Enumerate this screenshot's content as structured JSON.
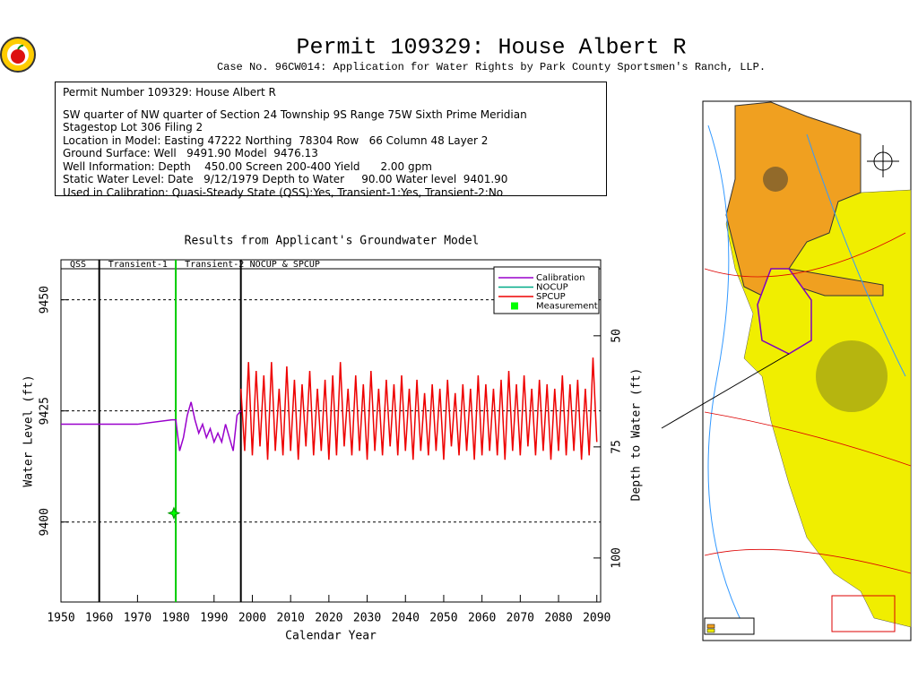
{
  "header": {
    "title": "Permit 109329:  House Albert R",
    "subtitle": "Case No. 96CW014: Application for Water Rights by Park County Sportsmen's Ranch, LLP."
  },
  "info": {
    "lines": [
      "Permit Number 109329: House Albert R",
      "SW quarter of NW quarter of Section 24 Township 9S Range 75W Sixth Prime Meridian",
      "Stagestop Lot 306 Filing 2",
      "Location in Model: Easting 47222 Northing  78304 Row   66 Column 48 Layer 2",
      "Ground Surface: Well   9491.90 Model  9476.13",
      "Well Information: Depth    450.00 Screen 200-400 Yield      2.00 gpm",
      "Static Water Level: Date   9/12/1979 Depth to Water     90.00 Water level  9401.90",
      "Used in Calibration: Quasi-Steady State (QSS):Yes, Transient-1:Yes, Transient-2:No"
    ]
  },
  "chart_data": {
    "type": "line",
    "title": "Results from Applicant's Groundwater Model",
    "xlabel": "Calendar Year",
    "ylabel": "Water Level (ft)",
    "y2label": "Depth to Water (ft)",
    "xlim": [
      1950,
      2091
    ],
    "xticks": [
      1950,
      1960,
      1970,
      1980,
      1990,
      2000,
      2010,
      2020,
      2030,
      2040,
      2050,
      2060,
      2070,
      2080,
      2090
    ],
    "ylim": [
      9382,
      9459
    ],
    "yticks": [
      9400,
      9425,
      9450
    ],
    "y2lim": [
      109.9,
      32.9
    ],
    "y2ticks": [
      50,
      75,
      100
    ],
    "grid": true,
    "phases": [
      {
        "label": "QSS",
        "from": 1950,
        "to": 1960,
        "color": "#000000"
      },
      {
        "label": "Transient-1",
        "from": 1960,
        "to": 1980,
        "color": "#00cc00"
      },
      {
        "label": "Transient-2",
        "from": 1980,
        "to": 1997,
        "color": "#000000"
      },
      {
        "label": "NOCUP  &  SPCUP",
        "from": 1997,
        "to": 2091,
        "color": "#000000"
      }
    ],
    "series": [
      {
        "name": "Calibration",
        "color": "#9900cc",
        "x": [
          1950,
          1960,
          1970,
          1979,
          1980,
          1981,
          1982,
          1983,
          1984,
          1985,
          1986,
          1987,
          1988,
          1989,
          1990,
          1991,
          1992,
          1993,
          1994,
          1995,
          1996,
          1997
        ],
        "values": [
          9422,
          9422,
          9422,
          9423,
          9423,
          9416,
          9419,
          9424,
          9427,
          9423,
          9420,
          9422,
          9419,
          9421,
          9418,
          9420,
          9418,
          9422,
          9419,
          9416,
          9424,
          9425
        ]
      },
      {
        "name": "NOCUP",
        "color": "#00aa88",
        "x": [
          1997
        ],
        "values": [
          9430
        ]
      },
      {
        "name": "SPCUP",
        "color": "#ee0000",
        "x": [
          1997,
          1998,
          1999,
          2000,
          2001,
          2002,
          2003,
          2004,
          2005,
          2006,
          2007,
          2008,
          2009,
          2010,
          2011,
          2012,
          2013,
          2014,
          2015,
          2016,
          2017,
          2018,
          2019,
          2020,
          2021,
          2022,
          2023,
          2024,
          2025,
          2026,
          2027,
          2028,
          2029,
          2030,
          2031,
          2032,
          2033,
          2034,
          2035,
          2036,
          2037,
          2038,
          2039,
          2040,
          2041,
          2042,
          2043,
          2044,
          2045,
          2046,
          2047,
          2048,
          2049,
          2050,
          2051,
          2052,
          2053,
          2054,
          2055,
          2056,
          2057,
          2058,
          2059,
          2060,
          2061,
          2062,
          2063,
          2064,
          2065,
          2066,
          2067,
          2068,
          2069,
          2070,
          2071,
          2072,
          2073,
          2074,
          2075,
          2076,
          2077,
          2078,
          2079,
          2080,
          2081,
          2082,
          2083,
          2084,
          2085,
          2086,
          2087,
          2088,
          2089,
          2090
        ],
        "values": [
          9430,
          9416,
          9436,
          9415,
          9434,
          9417,
          9433,
          9414,
          9436,
          9416,
          9430,
          9415,
          9435,
          9416,
          9432,
          9414,
          9431,
          9417,
          9434,
          9415,
          9430,
          9416,
          9432,
          9414,
          9433,
          9415,
          9436,
          9417,
          9430,
          9415,
          9433,
          9416,
          9431,
          9414,
          9434,
          9416,
          9430,
          9415,
          9432,
          9417,
          9431,
          9415,
          9433,
          9416,
          9430,
          9414,
          9432,
          9416,
          9429,
          9415,
          9431,
          9416,
          9430,
          9414,
          9432,
          9417,
          9429,
          9415,
          9431,
          9416,
          9430,
          9414,
          9433,
          9415,
          9431,
          9416,
          9430,
          9415,
          9432,
          9414,
          9434,
          9416,
          9431,
          9415,
          9433,
          9417,
          9430,
          9415,
          9432,
          9416,
          9431,
          9414,
          9430,
          9416,
          9433,
          9415,
          9431,
          9416,
          9432,
          9414,
          9430,
          9415,
          9437,
          9418
        ]
      },
      {
        "name": "Measurement",
        "color": "#00ff00",
        "style": "marker",
        "x": [
          1979.5
        ],
        "values": [
          9402
        ]
      }
    ]
  }
}
